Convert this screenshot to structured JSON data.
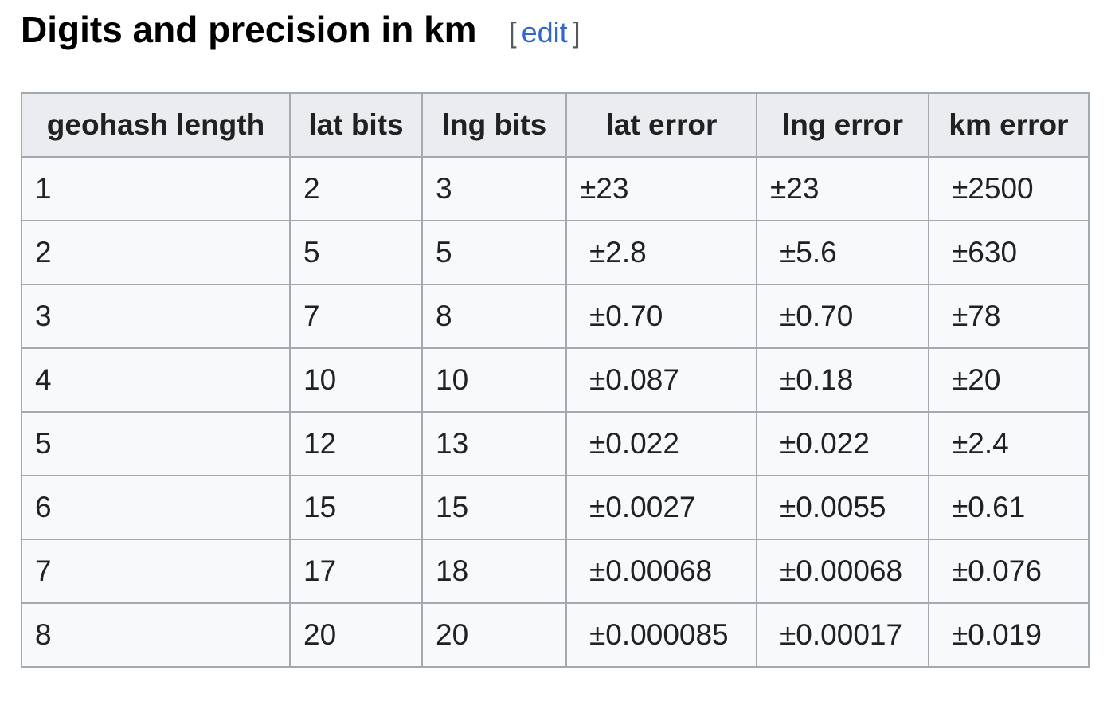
{
  "section": {
    "title": "Digits and precision in km",
    "edit_open": "[",
    "edit_label": "edit",
    "edit_close": "]"
  },
  "table": {
    "columns": [
      "geohash length",
      "lat bits",
      "lng bits",
      "lat error",
      "lng error",
      "km error"
    ],
    "rows": [
      [
        "1",
        "2",
        "3",
        "±23",
        "±23",
        "±2500"
      ],
      [
        "2",
        "5",
        "5",
        "±2.8",
        "±5.6",
        "±630"
      ],
      [
        "3",
        "7",
        "8",
        "±0.70",
        "±0.70",
        "±78"
      ],
      [
        "4",
        "10",
        "10",
        "±0.087",
        "±0.18",
        "±20"
      ],
      [
        "5",
        "12",
        "13",
        "±0.022",
        "±0.022",
        "±2.4"
      ],
      [
        "6",
        "15",
        "15",
        "±0.0027",
        "±0.0055",
        "±0.61"
      ],
      [
        "7",
        "17",
        "18",
        "±0.00068",
        "±0.00068",
        "±0.076"
      ],
      [
        "8",
        "20",
        "20",
        "±0.000085",
        "±0.00017",
        "±0.019"
      ]
    ]
  },
  "colors": {
    "link": "#3366cc",
    "header_bg": "#eaecf0",
    "cell_bg": "#f8f9fa",
    "border": "#a2a9b1"
  }
}
